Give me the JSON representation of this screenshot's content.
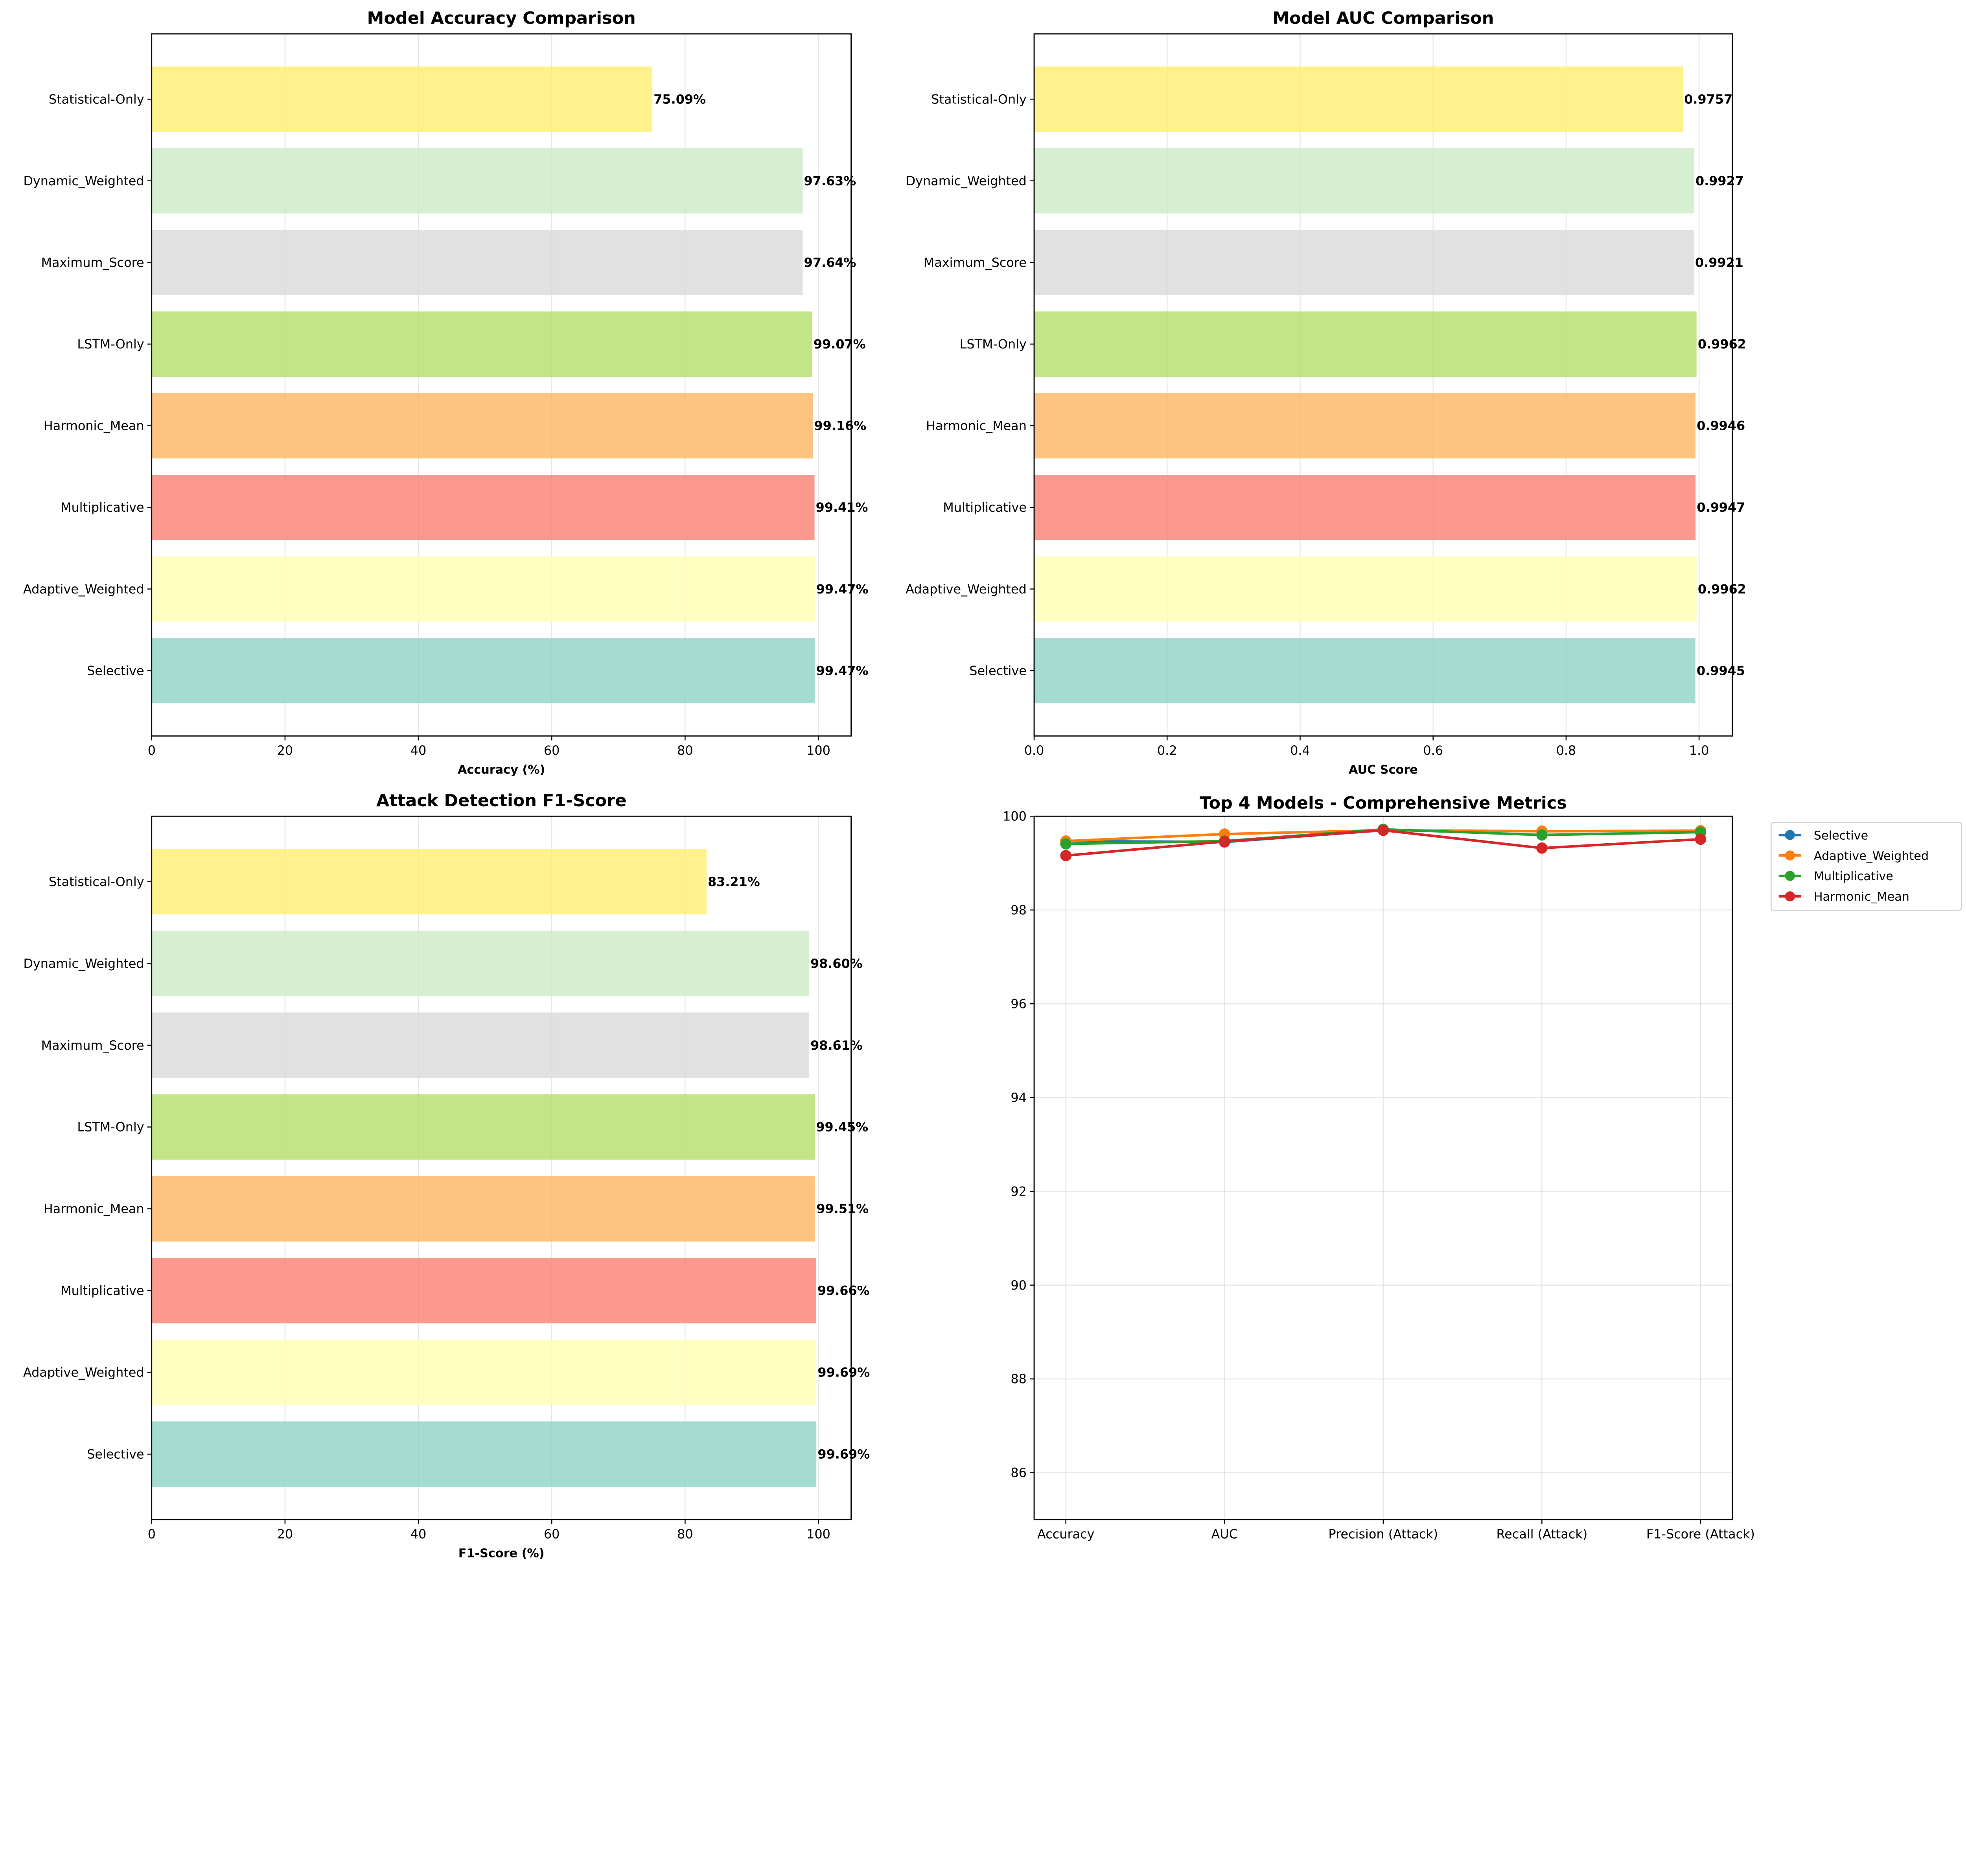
{
  "chart_data": [
    {
      "type": "bar",
      "orientation": "horizontal",
      "title": "Model Accuracy Comparison",
      "xlabel": "Accuracy (%)",
      "ylabel": "",
      "categories": [
        "Selective",
        "Adaptive_Weighted",
        "Multiplicative",
        "Harmonic_Mean",
        "LSTM-Only",
        "Maximum_Score",
        "Dynamic_Weighted",
        "Statistical-Only"
      ],
      "values": [
        99.47,
        99.47,
        99.41,
        99.16,
        99.07,
        97.64,
        97.63,
        75.09
      ],
      "data_labels": [
        "99.47%",
        "99.47%",
        "99.41%",
        "99.16%",
        "99.07%",
        "97.64%",
        "97.63%",
        "75.09%"
      ],
      "xlim": [
        0,
        104.9
      ],
      "xticks": [
        0,
        20,
        40,
        60,
        80,
        100
      ],
      "xtick_labels": [
        "0",
        "20",
        "40",
        "60",
        "80",
        "100"
      ],
      "grid": "x"
    },
    {
      "type": "bar",
      "orientation": "horizontal",
      "title": "Model AUC Comparison",
      "xlabel": "AUC Score",
      "ylabel": "",
      "categories": [
        "Selective",
        "Adaptive_Weighted",
        "Multiplicative",
        "Harmonic_Mean",
        "LSTM-Only",
        "Maximum_Score",
        "Dynamic_Weighted",
        "Statistical-Only"
      ],
      "values": [
        0.9945,
        0.9962,
        0.9947,
        0.9946,
        0.9962,
        0.9921,
        0.9927,
        0.9757
      ],
      "data_labels": [
        "0.9945",
        "0.9962",
        "0.9947",
        "0.9946",
        "0.9962",
        "0.9921",
        "0.9927",
        "0.9757"
      ],
      "xlim": [
        0,
        1.05
      ],
      "xticks": [
        0,
        0.2,
        0.4,
        0.6,
        0.8,
        1.0
      ],
      "xtick_labels": [
        "0.0",
        "0.2",
        "0.4",
        "0.6",
        "0.8",
        "1.0"
      ],
      "grid": "x"
    },
    {
      "type": "bar",
      "orientation": "horizontal",
      "title": "Attack Detection F1-Score",
      "xlabel": "F1-Score (%)",
      "ylabel": "",
      "categories": [
        "Selective",
        "Adaptive_Weighted",
        "Multiplicative",
        "Harmonic_Mean",
        "LSTM-Only",
        "Maximum_Score",
        "Dynamic_Weighted",
        "Statistical-Only"
      ],
      "values": [
        99.69,
        99.69,
        99.66,
        99.51,
        99.45,
        98.61,
        98.6,
        83.21
      ],
      "data_labels": [
        "99.69%",
        "99.69%",
        "99.66%",
        "99.51%",
        "99.45%",
        "98.61%",
        "98.60%",
        "83.21%"
      ],
      "xlim": [
        0,
        104.9
      ],
      "xticks": [
        0,
        20,
        40,
        60,
        80,
        100
      ],
      "xtick_labels": [
        "0",
        "20",
        "40",
        "60",
        "80",
        "100"
      ],
      "grid": "x"
    },
    {
      "type": "line",
      "title": "Top 4 Models - Comprehensive Metrics",
      "xlabel": "",
      "ylabel": "",
      "categories": [
        "Accuracy",
        "AUC",
        "Precision (Attack)",
        "Recall (Attack)",
        "F1-Score (Attack)"
      ],
      "ylim": [
        85,
        100
      ],
      "yticks": [
        86,
        88,
        90,
        92,
        94,
        96,
        98,
        100
      ],
      "ytick_labels": [
        "86",
        "88",
        "90",
        "92",
        "94",
        "96",
        "98",
        "100"
      ],
      "grid": "both",
      "legend": "outside-top-right",
      "series": [
        {
          "name": "Selective",
          "color": "#1f77b4",
          "values": [
            99.47,
            99.45,
            99.7,
            99.68,
            99.69
          ]
        },
        {
          "name": "Adaptive_Weighted",
          "color": "#ff7f0e",
          "values": [
            99.47,
            99.62,
            99.7,
            99.68,
            99.69
          ]
        },
        {
          "name": "Multiplicative",
          "color": "#2ca02c",
          "values": [
            99.41,
            99.47,
            99.72,
            99.6,
            99.66
          ]
        },
        {
          "name": "Harmonic_Mean",
          "color": "#d62728",
          "values": [
            99.16,
            99.46,
            99.7,
            99.32,
            99.51
          ]
        }
      ]
    }
  ],
  "bar_colors": {
    "Selective": "#8dd3c7",
    "Adaptive_Weighted": "#ffffb3",
    "Multiplicative": "#fb8072",
    "Harmonic_Mean": "#fdb462",
    "LSTM-Only": "#b3de69",
    "Maximum_Score": "#d9d9d9",
    "Dynamic_Weighted": "#ccebc5",
    "Statistical-Only": "#ffed6f"
  }
}
